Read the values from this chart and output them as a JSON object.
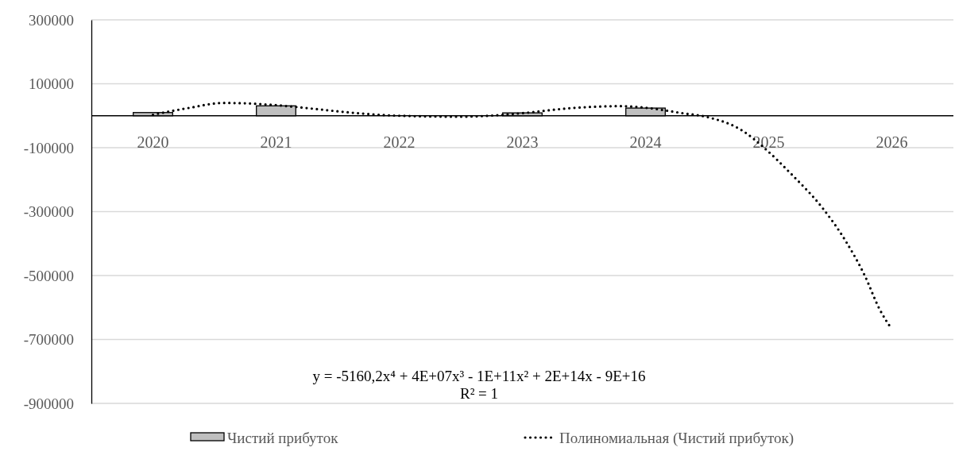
{
  "chart_data": {
    "type": "bar",
    "xlim": [
      2019.5,
      2026.5
    ],
    "xticks": [
      2020,
      2021,
      2022,
      2023,
      2024,
      2025,
      2026
    ],
    "ylim": [
      -900000,
      300000
    ],
    "yticks": [
      -900000,
      -700000,
      -500000,
      -300000,
      -100000,
      100000,
      300000
    ],
    "grid": "y",
    "legend": "bottom",
    "series": [
      {
        "name": "Чистий прибуток",
        "color": "#bfbfbf",
        "x": [
          2020,
          2021,
          2022,
          2023,
          2024
        ],
        "values": [
          10000,
          31000,
          null,
          9000,
          24000
        ]
      },
      {
        "name": "Полиномиальная (Чистий прибуток)",
        "type": "line",
        "color": "#000000",
        "line_style": "dotted",
        "x": [
          2020,
          2020.3,
          2020.57,
          2020.8,
          2021,
          2021.3,
          2021.6,
          2022,
          2022.5,
          2023,
          2023.4,
          2023.8,
          2024,
          2024.3,
          2024.5,
          2024.8,
          2024.95,
          2025.19,
          2025.44,
          2025.63,
          2025.78,
          2025.9,
          2026
        ],
        "values": [
          3000,
          25000,
          40000,
          38000,
          33000,
          22000,
          10000,
          0,
          -3000,
          8000,
          24000,
          30000,
          25000,
          8000,
          -4000,
          -50000,
          -96000,
          -185000,
          -290000,
          -395000,
          -500000,
          -605000,
          -668000
        ]
      }
    ],
    "annotations": [
      "y = -5160,2x⁴ + 4E+07x³ - 1E+11x² + 2E+14x - 9E+16",
      "R² = 1"
    ]
  }
}
